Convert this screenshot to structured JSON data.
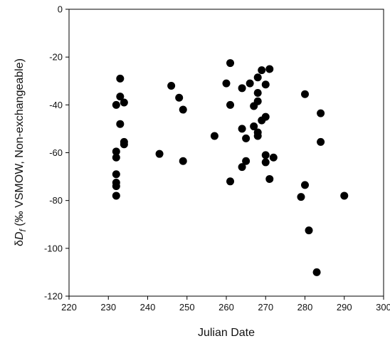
{
  "chart_data": {
    "type": "scatter",
    "title": "",
    "xlabel": "Julian Date",
    "ylabel_parts": {
      "prefix": "δ",
      "symbol": "D",
      "subscript": "f",
      "suffix": " (‰ VSMOW, Non-exchangeable)"
    },
    "xlim": [
      220,
      300
    ],
    "ylim": [
      -120,
      0
    ],
    "xticks": [
      220,
      230,
      240,
      250,
      260,
      270,
      280,
      290,
      300
    ],
    "yticks": [
      0,
      -20,
      -40,
      -60,
      -80,
      -100,
      -120
    ],
    "grid": false,
    "legend": "none",
    "marker_color": "#000000",
    "points": [
      {
        "x": 232,
        "y": -40
      },
      {
        "x": 232,
        "y": -59.5
      },
      {
        "x": 232,
        "y": -62
      },
      {
        "x": 232,
        "y": -69
      },
      {
        "x": 232,
        "y": -72.5
      },
      {
        "x": 232,
        "y": -74
      },
      {
        "x": 232,
        "y": -78
      },
      {
        "x": 233,
        "y": -29
      },
      {
        "x": 233,
        "y": -36.5
      },
      {
        "x": 233,
        "y": -48
      },
      {
        "x": 234,
        "y": -39
      },
      {
        "x": 234,
        "y": -55.5
      },
      {
        "x": 234,
        "y": -56.5
      },
      {
        "x": 243,
        "y": -60.5
      },
      {
        "x": 246,
        "y": -32
      },
      {
        "x": 248,
        "y": -37
      },
      {
        "x": 249,
        "y": -42
      },
      {
        "x": 249,
        "y": -63.5
      },
      {
        "x": 257,
        "y": -53
      },
      {
        "x": 260,
        "y": -31
      },
      {
        "x": 261,
        "y": -22.5
      },
      {
        "x": 261,
        "y": -40
      },
      {
        "x": 261,
        "y": -72
      },
      {
        "x": 264,
        "y": -33
      },
      {
        "x": 264,
        "y": -50
      },
      {
        "x": 264,
        "y": -66
      },
      {
        "x": 265,
        "y": -54
      },
      {
        "x": 265,
        "y": -63.5
      },
      {
        "x": 266,
        "y": -31
      },
      {
        "x": 267,
        "y": -40.5
      },
      {
        "x": 267,
        "y": -49
      },
      {
        "x": 268,
        "y": -28.5
      },
      {
        "x": 268,
        "y": -35
      },
      {
        "x": 268,
        "y": -38.5
      },
      {
        "x": 268,
        "y": -51.5
      },
      {
        "x": 268,
        "y": -53
      },
      {
        "x": 269,
        "y": -25.5
      },
      {
        "x": 269,
        "y": -46.5
      },
      {
        "x": 270,
        "y": -31.5
      },
      {
        "x": 270,
        "y": -45
      },
      {
        "x": 270,
        "y": -61
      },
      {
        "x": 270,
        "y": -64
      },
      {
        "x": 271,
        "y": -25
      },
      {
        "x": 271,
        "y": -71
      },
      {
        "x": 272,
        "y": -62
      },
      {
        "x": 279,
        "y": -78.5
      },
      {
        "x": 280,
        "y": -35.5
      },
      {
        "x": 280,
        "y": -73.5
      },
      {
        "x": 281,
        "y": -92.5
      },
      {
        "x": 283,
        "y": -110
      },
      {
        "x": 284,
        "y": -43.5
      },
      {
        "x": 284,
        "y": -55.5
      },
      {
        "x": 290,
        "y": -78
      }
    ]
  }
}
